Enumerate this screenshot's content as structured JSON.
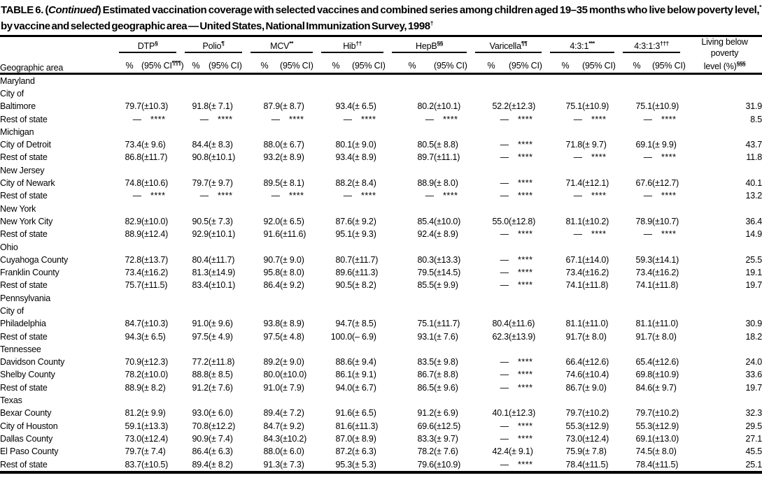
{
  "title": {
    "prefix": "TABLE 6. (",
    "continued": "Continued",
    "rest1": ") Estimated vaccination coverage with selected vaccines and combined series among children aged 19–35 months who live below poverty level,",
    "sup1": "*",
    "rest2": " by vaccine and selected geographic area — United States, National Immunization Survey, 1998",
    "sup2": "†"
  },
  "table": {
    "row_header": "Geographic area",
    "groups": [
      {
        "label": "DTP",
        "sup": "§",
        "pct": "%",
        "ci": "(95% CI",
        "ci_sup": "¶¶¶",
        "ci_close": ")"
      },
      {
        "label": "Polio",
        "sup": "¶",
        "pct": "%",
        "ci": "(95% CI",
        "ci_sup": "",
        "ci_close": ")"
      },
      {
        "label": "MCV",
        "sup": "**",
        "pct": "%",
        "ci": "(95% CI",
        "ci_sup": "",
        "ci_close": ")"
      },
      {
        "label": "Hib",
        "sup": "††",
        "pct": "%",
        "ci": "(95% CI",
        "ci_sup": "",
        "ci_close": ")"
      },
      {
        "label": "HepB",
        "sup": "§§",
        "pct": "%",
        "ci": "(95% CI",
        "ci_sup": "",
        "ci_close": ")"
      },
      {
        "label": "Varicella",
        "sup": "¶¶",
        "pct": "%",
        "ci": "(95% CI",
        "ci_sup": "",
        "ci_close": ")"
      },
      {
        "label": "4:3:1",
        "sup": "***",
        "pct": "%",
        "ci": "(95% CI",
        "ci_sup": "",
        "ci_close": ")"
      },
      {
        "label": "4:3:1:3",
        "sup": "†††",
        "pct": "%",
        "ci": "(95% CI",
        "ci_sup": "",
        "ci_close": ")"
      }
    ],
    "poverty_header": {
      "line1": "Living below",
      "line2": "poverty",
      "line3": "level (%)",
      "sup": "§§§"
    },
    "rows": [
      {
        "label": "Maryland",
        "indent": 0,
        "bold": true
      },
      {
        "label": "City of",
        "indent": 1
      },
      {
        "label": "Baltimore",
        "indent": 2,
        "cells": [
          [
            "79.7",
            "(±10.3)"
          ],
          [
            "91.8",
            "(± 7.1)"
          ],
          [
            "87.9",
            "(± 8.7)"
          ],
          [
            "93.4",
            "(± 6.5)"
          ],
          [
            "80.2",
            "(±10.1)"
          ],
          [
            "52.2",
            "(±12.3)"
          ],
          [
            "75.1",
            "(±10.9)"
          ],
          [
            "75.1",
            "(±10.9)"
          ]
        ],
        "poverty": "31.9"
      },
      {
        "label": "Rest of state",
        "indent": 1,
        "cells": [
          [
            "—",
            "****"
          ],
          [
            "—",
            "****"
          ],
          [
            "—",
            "****"
          ],
          [
            "—",
            "****"
          ],
          [
            "—",
            "****"
          ],
          [
            "—",
            "****"
          ],
          [
            "—",
            "****"
          ],
          [
            "—",
            "****"
          ]
        ],
        "poverty": "8.5"
      },
      {
        "label": "Michigan",
        "indent": 0,
        "bold": true
      },
      {
        "label": "City of Detroit",
        "indent": 1,
        "cells": [
          [
            "73.4",
            "(± 9.6)"
          ],
          [
            "84.4",
            "(± 8.3)"
          ],
          [
            "88.0",
            "(± 6.7)"
          ],
          [
            "80.1",
            "(± 9.0)"
          ],
          [
            "80.5",
            "(± 8.8)"
          ],
          [
            "—",
            "****"
          ],
          [
            "71.8",
            "(± 9.7)"
          ],
          [
            "69.1",
            "(± 9.9)"
          ]
        ],
        "poverty": "43.7"
      },
      {
        "label": "Rest of state",
        "indent": 1,
        "cells": [
          [
            "86.8",
            "(±11.7)"
          ],
          [
            "90.8",
            "(±10.1)"
          ],
          [
            "93.2",
            "(± 8.9)"
          ],
          [
            "93.4",
            "(± 8.9)"
          ],
          [
            "89.7",
            "(±11.1)"
          ],
          [
            "—",
            "****"
          ],
          [
            "—",
            "****"
          ],
          [
            "—",
            "****"
          ]
        ],
        "poverty": "11.8"
      },
      {
        "label": "New Jersey",
        "indent": 0,
        "bold": true
      },
      {
        "label": "City of Newark",
        "indent": 1,
        "cells": [
          [
            "74.8",
            "(±10.6)"
          ],
          [
            "79.7",
            "(± 9.7)"
          ],
          [
            "89.5",
            "(± 8.1)"
          ],
          [
            "88.2",
            "(± 8.4)"
          ],
          [
            "88.9",
            "(± 8.0)"
          ],
          [
            "—",
            "****"
          ],
          [
            "71.4",
            "(±12.1)"
          ],
          [
            "67.6",
            "(±12.7)"
          ]
        ],
        "poverty": "40.1"
      },
      {
        "label": "Rest of state",
        "indent": 1,
        "cells": [
          [
            "—",
            "****"
          ],
          [
            "—",
            "****"
          ],
          [
            "—",
            "****"
          ],
          [
            "—",
            "****"
          ],
          [
            "—",
            "****"
          ],
          [
            "—",
            "****"
          ],
          [
            "—",
            "****"
          ],
          [
            "—",
            "****"
          ]
        ],
        "poverty": "13.2"
      },
      {
        "label": "New York",
        "indent": 0,
        "bold": true
      },
      {
        "label": "New York City",
        "indent": 1,
        "cells": [
          [
            "82.9",
            "(±10.0)"
          ],
          [
            "90.5",
            "(± 7.3)"
          ],
          [
            "92.0",
            "(± 6.5)"
          ],
          [
            "87.6",
            "(± 9.2)"
          ],
          [
            "85.4",
            "(±10.0)"
          ],
          [
            "55.0",
            "(±12.8)"
          ],
          [
            "81.1",
            "(±10.2)"
          ],
          [
            "78.9",
            "(±10.7)"
          ]
        ],
        "poverty": "36.4"
      },
      {
        "label": "Rest of state",
        "indent": 1,
        "cells": [
          [
            "88.9",
            "(±12.4)"
          ],
          [
            "92.9",
            "(±10.1)"
          ],
          [
            "91.6",
            "(±11.6)"
          ],
          [
            "95.1",
            "(± 9.3)"
          ],
          [
            "92.4",
            "(± 8.9)"
          ],
          [
            "—",
            "****"
          ],
          [
            "—",
            "****"
          ],
          [
            "—",
            "****"
          ]
        ],
        "poverty": "14.9"
      },
      {
        "label": "Ohio",
        "indent": 0,
        "bold": true
      },
      {
        "label": "Cuyahoga County",
        "indent": 1,
        "cells": [
          [
            "72.8",
            "(±13.7)"
          ],
          [
            "80.4",
            "(±11.7)"
          ],
          [
            "90.7",
            "(± 9.0)"
          ],
          [
            "80.7",
            "(±11.7)"
          ],
          [
            "80.3",
            "(±13.3)"
          ],
          [
            "—",
            "****"
          ],
          [
            "67.1",
            "(±14.0)"
          ],
          [
            "59.3",
            "(±14.1)"
          ]
        ],
        "poverty": "25.5"
      },
      {
        "label": "Franklin County",
        "indent": 1,
        "cells": [
          [
            "73.4",
            "(±16.2)"
          ],
          [
            "81.3",
            "(±14.9)"
          ],
          [
            "95.8",
            "(± 8.0)"
          ],
          [
            "89.6",
            "(±11.3)"
          ],
          [
            "79.5",
            "(±14.5)"
          ],
          [
            "—",
            "****"
          ],
          [
            "73.4",
            "(±16.2)"
          ],
          [
            "73.4",
            "(±16.2)"
          ]
        ],
        "poverty": "19.1"
      },
      {
        "label": "Rest of state",
        "indent": 1,
        "cells": [
          [
            "75.7",
            "(±11.5)"
          ],
          [
            "83.4",
            "(±10.1)"
          ],
          [
            "86.4",
            "(± 9.2)"
          ],
          [
            "90.5",
            "(± 8.2)"
          ],
          [
            "85.5",
            "(± 9.9)"
          ],
          [
            "—",
            "****"
          ],
          [
            "74.1",
            "(±11.8)"
          ],
          [
            "74.1",
            "(±11.8)"
          ]
        ],
        "poverty": "19.7"
      },
      {
        "label": "Pennsylvania",
        "indent": 0,
        "bold": true
      },
      {
        "label": "City of",
        "indent": 1
      },
      {
        "label": "Philadelphia",
        "indent": 2,
        "cells": [
          [
            "84.7",
            "(±10.3)"
          ],
          [
            "91.0",
            "(± 9.6)"
          ],
          [
            "93.8",
            "(± 8.9)"
          ],
          [
            "94.7",
            "(± 8.5)"
          ],
          [
            "75.1",
            "(±11.7)"
          ],
          [
            "80.4",
            "(±11.6)"
          ],
          [
            "81.1",
            "(±11.0)"
          ],
          [
            "81.1",
            "(±11.0)"
          ]
        ],
        "poverty": "30.9"
      },
      {
        "label": "Rest of state",
        "indent": 1,
        "cells": [
          [
            "94.3",
            "(± 6.5)"
          ],
          [
            "97.5",
            "(± 4.9)"
          ],
          [
            "97.5",
            "(± 4.8)"
          ],
          [
            "100.0",
            "(– 6.9)"
          ],
          [
            "93.1",
            "(± 7.6)"
          ],
          [
            "62.3",
            "(±13.9)"
          ],
          [
            "91.7",
            "(± 8.0)"
          ],
          [
            "91.7",
            "(± 8.0)"
          ]
        ],
        "poverty": "18.2"
      },
      {
        "label": "Tennessee",
        "indent": 0,
        "bold": true
      },
      {
        "label": "Davidson County",
        "indent": 1,
        "cells": [
          [
            "70.9",
            "(±12.3)"
          ],
          [
            "77.2",
            "(±11.8)"
          ],
          [
            "89.2",
            "(± 9.0)"
          ],
          [
            "88.6",
            "(± 9.4)"
          ],
          [
            "83.5",
            "(± 9.8)"
          ],
          [
            "—",
            "****"
          ],
          [
            "66.4",
            "(±12.6)"
          ],
          [
            "65.4",
            "(±12.6)"
          ]
        ],
        "poverty": "24.0"
      },
      {
        "label": "Shelby County",
        "indent": 1,
        "cells": [
          [
            "78.2",
            "(±10.0)"
          ],
          [
            "88.8",
            "(± 8.5)"
          ],
          [
            "80.0",
            "(±10.0)"
          ],
          [
            "86.1",
            "(± 9.1)"
          ],
          [
            "86.7",
            "(± 8.8)"
          ],
          [
            "—",
            "****"
          ],
          [
            "74.6",
            "(±10.4)"
          ],
          [
            "69.8",
            "(±10.9)"
          ]
        ],
        "poverty": "33.6"
      },
      {
        "label": "Rest of state",
        "indent": 1,
        "cells": [
          [
            "88.9",
            "(± 8.2)"
          ],
          [
            "91.2",
            "(± 7.6)"
          ],
          [
            "91.0",
            "(± 7.9)"
          ],
          [
            "94.0",
            "(± 6.7)"
          ],
          [
            "86.5",
            "(± 9.6)"
          ],
          [
            "—",
            "****"
          ],
          [
            "86.7",
            "(± 9.0)"
          ],
          [
            "84.6",
            "(± 9.7)"
          ]
        ],
        "poverty": "19.7"
      },
      {
        "label": "Texas",
        "indent": 0,
        "bold": true
      },
      {
        "label": "Bexar County",
        "indent": 1,
        "cells": [
          [
            "81.2",
            "(± 9.9)"
          ],
          [
            "93.0",
            "(± 6.0)"
          ],
          [
            "89.4",
            "(± 7.2)"
          ],
          [
            "91.6",
            "(± 6.5)"
          ],
          [
            "91.2",
            "(± 6.9)"
          ],
          [
            "40.1",
            "(±12.3)"
          ],
          [
            "79.7",
            "(±10.2)"
          ],
          [
            "79.7",
            "(±10.2)"
          ]
        ],
        "poverty": "32.3"
      },
      {
        "label": "City of Houston",
        "indent": 1,
        "cells": [
          [
            "59.1",
            "(±13.3)"
          ],
          [
            "70.8",
            "(±12.2)"
          ],
          [
            "84.7",
            "(± 9.2)"
          ],
          [
            "81.6",
            "(±11.3)"
          ],
          [
            "69.6",
            "(±12.5)"
          ],
          [
            "—",
            "****"
          ],
          [
            "55.3",
            "(±12.9)"
          ],
          [
            "55.3",
            "(±12.9)"
          ]
        ],
        "poverty": "29.5"
      },
      {
        "label": "Dallas County",
        "indent": 1,
        "cells": [
          [
            "73.0",
            "(±12.4)"
          ],
          [
            "90.9",
            "(± 7.4)"
          ],
          [
            "84.3",
            "(±10.2)"
          ],
          [
            "87.0",
            "(± 8.9)"
          ],
          [
            "83.3",
            "(± 9.7)"
          ],
          [
            "—",
            "****"
          ],
          [
            "73.0",
            "(±12.4)"
          ],
          [
            "69.1",
            "(±13.0)"
          ]
        ],
        "poverty": "27.1"
      },
      {
        "label": "El Paso County",
        "indent": 1,
        "cells": [
          [
            "79.7",
            "(± 7.4)"
          ],
          [
            "86.4",
            "(± 6.3)"
          ],
          [
            "88.0",
            "(± 6.0)"
          ],
          [
            "87.2",
            "(± 6.3)"
          ],
          [
            "78.2",
            "(± 7.6)"
          ],
          [
            "42.4",
            "(± 9.1)"
          ],
          [
            "75.9",
            "(± 7.8)"
          ],
          [
            "74.5",
            "(± 8.0)"
          ]
        ],
        "poverty": "45.5"
      },
      {
        "label": "Rest of state",
        "indent": 1,
        "cells": [
          [
            "83.7",
            "(±10.5)"
          ],
          [
            "89.4",
            "(± 8.2)"
          ],
          [
            "91.3",
            "(± 7.3)"
          ],
          [
            "95.3",
            "(± 5.3)"
          ],
          [
            "79.6",
            "(±10.9)"
          ],
          [
            "—",
            "****"
          ],
          [
            "78.4",
            "(±11.5)"
          ],
          [
            "78.4",
            "(±11.5)"
          ]
        ],
        "poverty": "25.1"
      }
    ]
  }
}
